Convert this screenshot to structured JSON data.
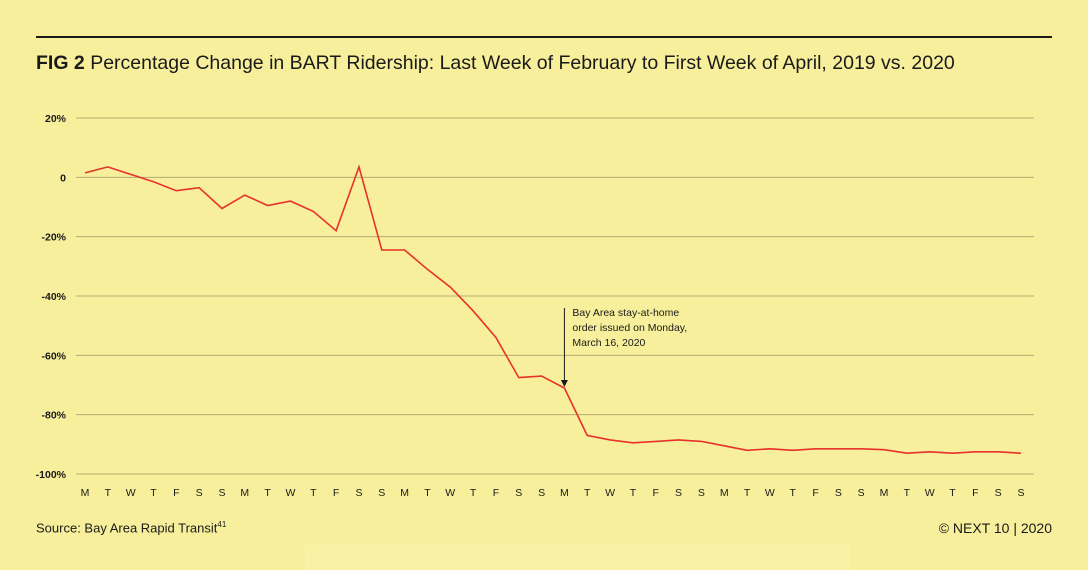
{
  "header": {
    "fig_label": "FIG 2",
    "title": "Percentage Change in BART Ridership: Last Week of February to First Week of April, 2019 vs. 2020"
  },
  "footer": {
    "source": "Source: Bay Area Rapid Transit",
    "source_ref": "41",
    "credit": "© NEXT 10 | 2020"
  },
  "colors": {
    "background": "#f7ef9b",
    "line": "#e8312a",
    "grid": "#b5ab72",
    "text": "#1a1a1a"
  },
  "chart_data": {
    "type": "line",
    "title": "",
    "xlabel": "",
    "ylabel": "",
    "ylim": [
      -100,
      20
    ],
    "y_ticks": [
      {
        "value": 20,
        "label": "20%"
      },
      {
        "value": 0,
        "label": "0"
      },
      {
        "value": -20,
        "label": "-20%"
      },
      {
        "value": -40,
        "label": "-40%"
      },
      {
        "value": -60,
        "label": "-60%"
      },
      {
        "value": -80,
        "label": "-80%"
      },
      {
        "value": -100,
        "label": "-100%"
      }
    ],
    "grid": true,
    "categories": [
      "M",
      "T",
      "W",
      "T",
      "F",
      "S",
      "S",
      "M",
      "T",
      "W",
      "T",
      "F",
      "S",
      "S",
      "M",
      "T",
      "W",
      "T",
      "F",
      "S",
      "S",
      "M",
      "T",
      "W",
      "T",
      "F",
      "S",
      "S",
      "M",
      "T",
      "W",
      "T",
      "F",
      "S",
      "S",
      "M",
      "T",
      "W",
      "T",
      "F",
      "S",
      "S"
    ],
    "series": [
      {
        "values": [
          1.5,
          3.5,
          1,
          -1.5,
          -4.5,
          -3.5,
          -10.5,
          -6,
          -9.5,
          -8,
          -11.5,
          -18,
          3.5,
          -24.5,
          -24.5,
          -31,
          -37,
          -45,
          -54,
          -67.5,
          -67,
          -71,
          -87,
          -88.5,
          -89.5,
          -89,
          -88.5,
          -89,
          -90.5,
          -92,
          -91.5,
          -92,
          -91.5,
          -91.5,
          -91.5,
          -91.8,
          -93,
          -92.5,
          -93,
          -92.5,
          -92.5,
          -93
        ]
      }
    ],
    "annotation": {
      "text_lines": [
        "Bay Area stay-at-home",
        "order issued on Monday,",
        "March 16, 2020"
      ],
      "category_index": 21
    }
  }
}
